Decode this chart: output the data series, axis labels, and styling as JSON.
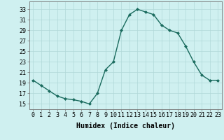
{
  "x": [
    0,
    1,
    2,
    3,
    4,
    5,
    6,
    7,
    8,
    9,
    10,
    11,
    12,
    13,
    14,
    15,
    16,
    17,
    18,
    19,
    20,
    21,
    22,
    23
  ],
  "y": [
    19.5,
    18.5,
    17.5,
    16.5,
    16.0,
    15.8,
    15.5,
    15.0,
    17.0,
    21.5,
    23.0,
    29.0,
    32.0,
    33.0,
    32.5,
    32.0,
    30.0,
    29.0,
    28.5,
    26.0,
    23.0,
    20.5,
    19.5,
    19.5
  ],
  "line_color": "#1a6b5e",
  "marker": "D",
  "marker_size": 2.0,
  "bg_color": "#cff0f0",
  "grid_color": "#b0d8d8",
  "xlabel": "Humidex (Indice chaleur)",
  "xlabel_fontsize": 7,
  "yticks": [
    15,
    17,
    19,
    21,
    23,
    25,
    27,
    29,
    31,
    33
  ],
  "xticks": [
    0,
    1,
    2,
    3,
    4,
    5,
    6,
    7,
    8,
    9,
    10,
    11,
    12,
    13,
    14,
    15,
    16,
    17,
    18,
    19,
    20,
    21,
    22,
    23
  ],
  "ylim": [
    14.0,
    34.5
  ],
  "xlim": [
    -0.5,
    23.5
  ],
  "tick_fontsize": 6,
  "line_width": 1.0
}
